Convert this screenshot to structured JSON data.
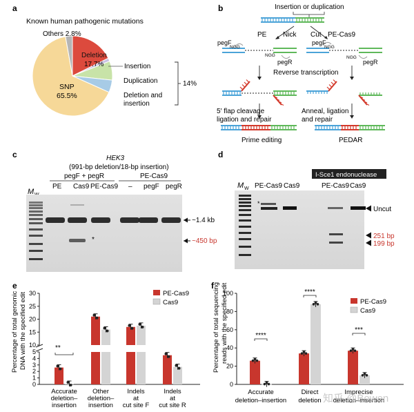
{
  "panel_a": {
    "letter": "a",
    "title": "Known human pathogenic mutations",
    "slices": [
      {
        "name": "Deletion",
        "pct": "17.7%",
        "value": 17.7,
        "color": "#dc4a3d"
      },
      {
        "name": "Insertion",
        "pct": "",
        "value": 1.3,
        "color": "#c9c3e3"
      },
      {
        "name": "Duplication",
        "pct": "",
        "value": 7.7,
        "color": "#c8e3a8"
      },
      {
        "name": "Deletion and insertion",
        "pct": "",
        "value": 5.0,
        "color": "#a7cbe6"
      },
      {
        "name": "SNP",
        "pct": "65.5%",
        "value": 65.5,
        "color": "#f6d898"
      },
      {
        "name": "Others",
        "pct": "2.8%",
        "value": 2.8,
        "color": "#b5b5b5"
      }
    ],
    "deletion_label": "Deletion",
    "deletion_pct": "17.7%",
    "snp_label": "SNP",
    "snp_pct": "65.5%",
    "others_label": "Others 2.8%",
    "insertion_label": "Insertion",
    "duplication_label": "Duplication",
    "delins_label_1": "Deletion and",
    "delins_label_2": "insertion",
    "bracket_pct": "14%"
  },
  "panel_b": {
    "letter": "b",
    "top_label": "Insertion or duplication",
    "pe_label": "PE",
    "nick_label": "Nick",
    "cut_label": "Cut",
    "pecas9_label": "PE-Cas9",
    "pegf_label": "pegF",
    "ngg_label": "NGG",
    "pegr_label": "pegR",
    "rt_label": "Reverse transcription",
    "flap_label_1": "5′ flap cleavage",
    "flap_label_2": "ligation and repair",
    "anneal_label_1": "Anneal, ligation",
    "anneal_label_2": "and repair",
    "prime_label": "Prime editing",
    "pedar_label": "PEDAR",
    "colors": {
      "blue": "#4aa3d8",
      "green": "#5fb85a",
      "red": "#d33a2c"
    }
  },
  "panel_c": {
    "letter": "c",
    "gene": "HEK3",
    "subtitle": "(991-bp deletion/18-bp insertion)",
    "group1": "pegF + pegR",
    "group2": "PE-Cas9",
    "lanes": [
      "PE",
      "Cas9",
      "PE-Cas9",
      "–",
      "pegF",
      "pegR"
    ],
    "marker": "M",
    "marker_sub": "W",
    "band1": "~1.4 kb",
    "band2": "~450 bp",
    "star": "*"
  },
  "panel_d": {
    "letter": "d",
    "enzyme": "I-Sce1 endonuclease",
    "lanes": [
      "PE-Cas9",
      "Cas9",
      "PE-Cas9",
      "Cas9"
    ],
    "marker": "M",
    "marker_sub": "W",
    "uncut": "Uncut",
    "band1": "251 bp",
    "band2": "199 bp",
    "star": "*"
  },
  "panel_e": {
    "letter": "e",
    "ylabel_1": "Percentage of total genomic",
    "ylabel_2": "DNA with the specified edit",
    "sig": "**",
    "chart_data": {
      "type": "bar",
      "categories": [
        "Accurate deletion–insertion",
        "Other deletion–insertion",
        "Indels at cut site F",
        "Indels at cut site R"
      ],
      "series": [
        {
          "name": "PE-Cas9",
          "values": [
            2.6,
            21,
            17,
            4.5
          ],
          "color": "#c8362d"
        },
        {
          "name": "Cas9",
          "values": [
            0.1,
            16,
            17.5,
            2.7
          ],
          "color": "#d4d4d4"
        }
      ],
      "ytick_labels": [
        "0",
        "1",
        "2",
        "3",
        "4",
        "5",
        "10",
        "15",
        "20",
        "25",
        "30"
      ],
      "broken_axis": true
    },
    "cat_labels": [
      [
        "Accurate",
        "deletion–",
        "insertion"
      ],
      [
        "Other",
        "deletion–",
        "insertion"
      ],
      [
        "Indels",
        "at",
        "cut site  F"
      ],
      [
        "Indels",
        "at",
        "cut site  R"
      ]
    ]
  },
  "panel_f": {
    "letter": "f",
    "ylabel_1": "Percentage of total sequencing",
    "ylabel_2": "reads with the specified edit",
    "sigs": [
      "****",
      "****",
      "***"
    ],
    "chart_data": {
      "type": "bar",
      "categories": [
        "Accurate deletion–insertion",
        "Direct deletion",
        "Imprecise deletion–insertion"
      ],
      "series": [
        {
          "name": "PE-Cas9",
          "values": [
            26,
            34,
            37
          ],
          "color": "#c8362d"
        },
        {
          "name": "Cas9",
          "values": [
            0.3,
            88,
            10
          ],
          "color": "#d4d4d4"
        }
      ],
      "ylim": [
        0,
        100
      ],
      "yticks": [
        0,
        20,
        40,
        60,
        80,
        100
      ]
    },
    "cat_labels": [
      [
        "Accurate",
        "deletion–insertion"
      ],
      [
        "Direct",
        "deletion"
      ],
      [
        "Imprecise",
        "deletion–insertion"
      ]
    ]
  },
  "watermark": "知乎 @Bowen"
}
